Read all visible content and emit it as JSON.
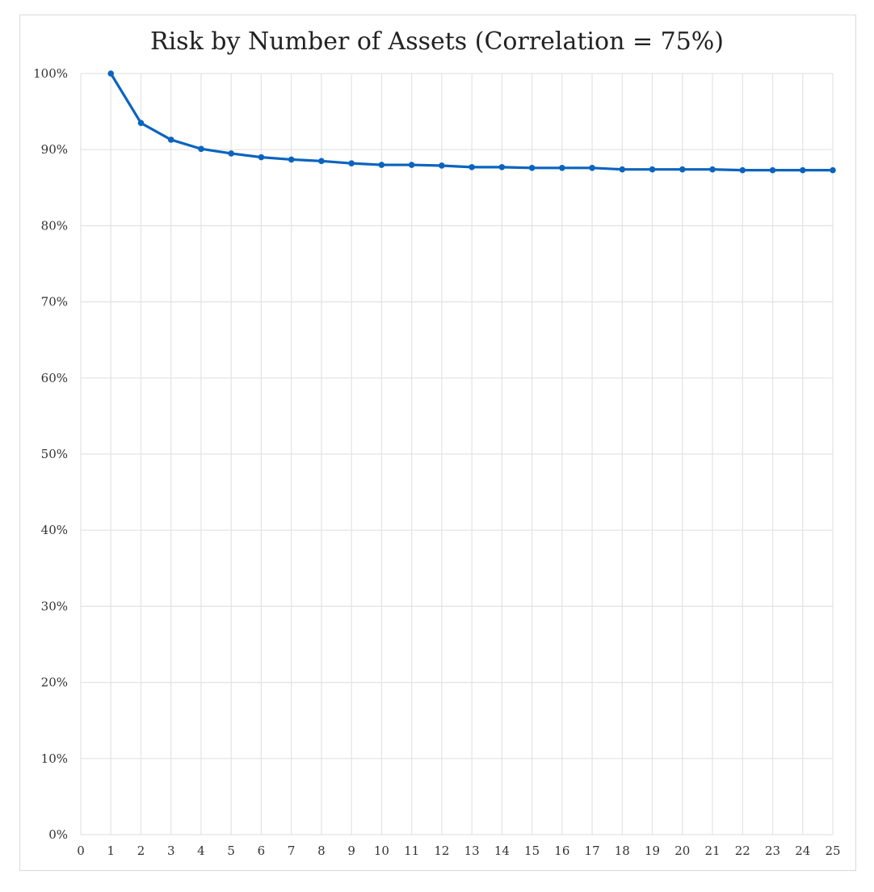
{
  "chart_data": {
    "type": "line",
    "title": "Risk by Number of Assets (Correlation = 75%)",
    "xlabel": "",
    "ylabel": "",
    "xlim": [
      0,
      25
    ],
    "ylim": [
      0,
      1
    ],
    "x_ticks": [
      "0",
      "1",
      "2",
      "3",
      "4",
      "5",
      "6",
      "7",
      "8",
      "9",
      "10",
      "11",
      "12",
      "13",
      "14",
      "15",
      "16",
      "17",
      "18",
      "19",
      "20",
      "21",
      "22",
      "23",
      "24",
      "25"
    ],
    "y_ticks": [
      "0%",
      "10%",
      "20%",
      "30%",
      "40%",
      "50%",
      "60%",
      "70%",
      "80%",
      "90%",
      "100%"
    ],
    "grid": true,
    "legend": "none",
    "series": [
      {
        "color": "#0a64bf",
        "x": [
          1,
          2,
          3,
          4,
          5,
          6,
          7,
          8,
          9,
          10,
          11,
          12,
          13,
          14,
          15,
          16,
          17,
          18,
          19,
          20,
          21,
          22,
          23,
          24,
          25
        ],
        "values": [
          1.0,
          0.935,
          0.913,
          0.901,
          0.895,
          0.89,
          0.887,
          0.885,
          0.882,
          0.88,
          0.88,
          0.879,
          0.877,
          0.877,
          0.876,
          0.876,
          0.876,
          0.874,
          0.874,
          0.874,
          0.874,
          0.873,
          0.873,
          0.873,
          0.873
        ]
      }
    ]
  }
}
